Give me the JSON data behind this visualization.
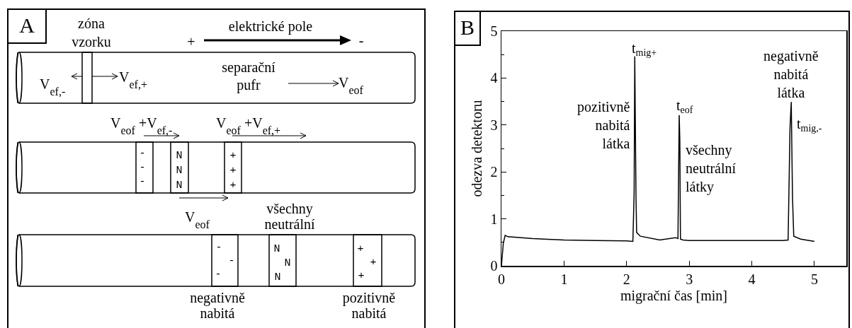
{
  "chart_data": [
    {
      "type": "other",
      "title": "A",
      "annotations": [
        "zóna\nvzorku",
        "elektrické pole",
        "+",
        "-",
        "V$_{ef,-}$",
        "V$_{ef,+}$",
        "separační\npufr",
        "V$_{eof}$",
        "V$_{eof}$ +V$_{ef,-}$",
        "V$_{eof}$ +V$_{ef,+}$",
        "-\n-\n-",
        "N\nN\nN",
        "+\n+\n+",
        "V$_{eof}$",
        "všechny\nneutrální",
        "-\n-\n-",
        "N\nN\nN",
        "+\n+\n+",
        "negativně\nnabitá",
        "pozitivně\nnabitá"
      ]
    },
    {
      "type": "line",
      "title": "B",
      "xlabel": "migrační čas [min]",
      "ylabel": "odezva detektoru",
      "color": "#000000",
      "x": [
        0,
        0.03,
        0.06,
        0.1,
        0.5,
        1.0,
        1.5,
        2.0,
        2.1,
        2.12,
        2.13,
        2.15,
        2.16,
        2.22,
        2.53,
        2.78,
        2.82,
        2.84,
        2.85,
        2.86,
        2.9,
        3.0,
        3.5,
        4.0,
        4.5,
        4.58,
        4.61,
        4.63,
        4.65,
        4.67,
        4.78,
        5.0
      ],
      "values": [
        0,
        0.48,
        0.65,
        0.62,
        0.58,
        0.55,
        0.54,
        0.53,
        0.52,
        1.56,
        4.46,
        1.45,
        0.71,
        0.63,
        0.55,
        0.6,
        0.58,
        3.21,
        2.67,
        0.57,
        0.55,
        0.54,
        0.54,
        0.54,
        0.54,
        0.55,
        2.93,
        3.49,
        1.45,
        0.63,
        0.57,
        0.52
      ],
      "xlim": [
        0,
        5.51
      ],
      "ylim": [
        0,
        5
      ],
      "xticks": [
        0,
        1,
        2,
        3,
        4,
        5
      ],
      "yticks": [
        0,
        1,
        2,
        3,
        4,
        5,
        {
          "value": 0.5,
          "label": null
        },
        {
          "value": 1.5,
          "label": null
        },
        {
          "value": 2.5,
          "label": null
        },
        {
          "value": 3.5,
          "label": null
        },
        {
          "value": 4.5,
          "label": null
        }
      ],
      "grid": false,
      "annotations": [
        {
          "text": "t$_{mig+}$",
          "x": 2.13,
          "y": 4.46
        },
        {
          "text": "pozitivně\nnabitá\nlátka",
          "x": 2.13,
          "y": 3.58
        },
        {
          "text": "t$_{eof}$",
          "x": 2.84,
          "y": 3.21
        },
        {
          "text": "všechny\nneutrální\nlátky",
          "x": 2.85,
          "y": 2.67
        },
        {
          "text": "negativně\nnabitá\nlátka",
          "x": 4.63,
          "y": 3.49
        },
        {
          "text": "t$_{mig,-}$",
          "x": 4.63,
          "y": 2.93
        }
      ]
    }
  ]
}
